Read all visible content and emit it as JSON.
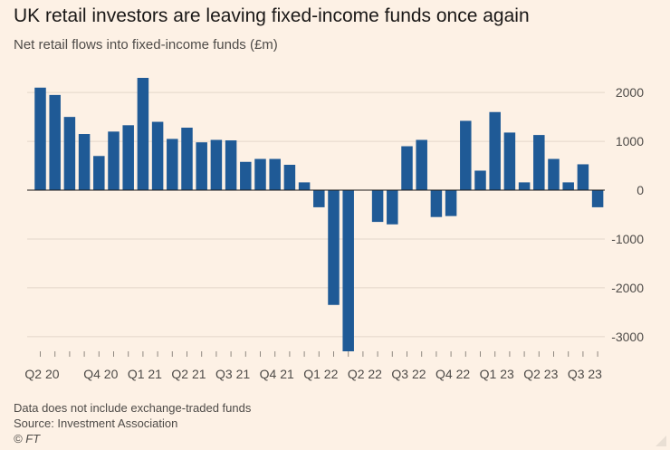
{
  "title": "UK retail investors are leaving fixed-income funds once again",
  "subtitle": "Net retail flows into fixed-income funds (£m)",
  "notes": {
    "line1": "Data does not include exchange-traded funds",
    "line2": "Source: Investment Association",
    "line3": "© FT"
  },
  "colors": {
    "bar": "#1f5a96",
    "background": "#fdf1e5",
    "grid": "#e4d7ca",
    "text": "#4e4b48"
  },
  "chart_data": {
    "type": "bar",
    "ylim": [
      -3300,
      2300
    ],
    "yticks": [
      2000,
      1000,
      0,
      -1000,
      -2000,
      -3000
    ],
    "ytick_labels": [
      "2000",
      "1000",
      "0",
      "-1000",
      "-2000",
      "-3000"
    ],
    "grid": true,
    "period_labels": [
      "Q2 20",
      "Q4 20",
      "Q1 21",
      "Q2 21",
      "Q3 21",
      "Q4 21",
      "Q1 22",
      "Q2 22",
      "Q3 22",
      "Q4 22",
      "Q1 23",
      "Q2 23",
      "Q3 23"
    ],
    "values": [
      2100,
      1950,
      1500,
      1150,
      700,
      1200,
      1330,
      2300,
      1400,
      1050,
      1280,
      980,
      1030,
      1020,
      580,
      640,
      640,
      520,
      160,
      -350,
      -2350,
      -3300,
      0,
      -650,
      -700,
      900,
      1030,
      -550,
      -530,
      1420,
      400,
      1600,
      1180,
      160,
      1130,
      640,
      160,
      530,
      -350
    ]
  }
}
